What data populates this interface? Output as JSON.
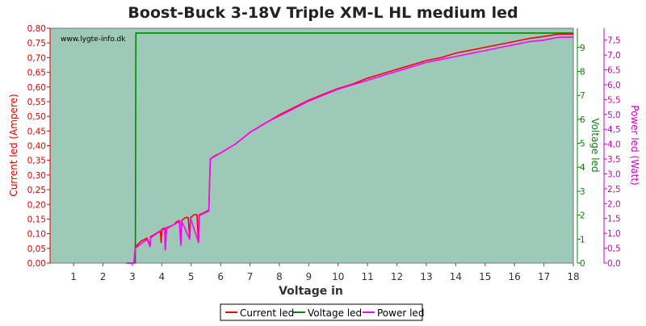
{
  "chart_data": {
    "type": "line",
    "title": "Boost-Buck 3-18V Triple XM-L HL medium led",
    "xlabel": "Voltage in",
    "xlim": [
      0.2,
      18
    ],
    "x_ticks": [
      1,
      2,
      3,
      4,
      5,
      6,
      7,
      8,
      9,
      10,
      11,
      12,
      13,
      14,
      15,
      16,
      17,
      18
    ],
    "watermark": "www.lygte-info.dk",
    "grid": false,
    "legend_position": "bottom-center",
    "axes": {
      "left": {
        "label": "Current led (Ampere)",
        "color": "#dd0000",
        "ylim": [
          0,
          0.8
        ],
        "ticks": [
          "0,00",
          "0,05",
          "0,10",
          "0,15",
          "0,20",
          "0,25",
          "0,30",
          "0,35",
          "0,40",
          "0,45",
          "0,50",
          "0,55",
          "0,60",
          "0,65",
          "0,70",
          "0,75",
          "0,80"
        ]
      },
      "right1": {
        "label": "Voltage led",
        "color": "#008800",
        "ylim": [
          0,
          9.8
        ],
        "ticks": [
          "0",
          "1",
          "2",
          "3",
          "4",
          "5",
          "6",
          "7",
          "8",
          "9"
        ]
      },
      "right2": {
        "label": "Power led (Watt)",
        "color": "#cc00cc",
        "ylim": [
          0,
          7.9
        ],
        "ticks": [
          "0,0",
          "0,5",
          "1,0",
          "1,5",
          "2,0",
          "2,5",
          "3,0",
          "3,5",
          "4,0",
          "4,5",
          "5,0",
          "5,5",
          "6,0",
          "6,5",
          "7,0",
          "7,5"
        ]
      }
    },
    "series": [
      {
        "name": "Current led",
        "axis": "left",
        "color": "#ff0000",
        "points": [
          [
            2.8,
            0.0
          ],
          [
            3.05,
            0.0
          ],
          [
            3.1,
            0.055
          ],
          [
            3.3,
            0.075
          ],
          [
            3.5,
            0.085
          ],
          [
            3.6,
            0.06
          ],
          [
            3.62,
            0.09
          ],
          [
            3.8,
            0.1
          ],
          [
            3.95,
            0.11
          ],
          [
            3.98,
            0.07
          ],
          [
            4.0,
            0.115
          ],
          [
            4.1,
            0.12
          ],
          [
            4.12,
            0.045
          ],
          [
            4.16,
            0.12
          ],
          [
            4.4,
            0.13
          ],
          [
            4.5,
            0.14
          ],
          [
            4.6,
            0.145
          ],
          [
            4.65,
            0.065
          ],
          [
            4.68,
            0.145
          ],
          [
            4.8,
            0.155
          ],
          [
            4.9,
            0.155
          ],
          [
            4.95,
            0.085
          ],
          [
            4.98,
            0.155
          ],
          [
            5.1,
            0.165
          ],
          [
            5.2,
            0.165
          ],
          [
            5.25,
            0.07
          ],
          [
            5.28,
            0.165
          ],
          [
            5.4,
            0.17
          ],
          [
            5.6,
            0.18
          ],
          [
            5.65,
            0.355
          ],
          [
            5.8,
            0.365
          ],
          [
            6.0,
            0.375
          ],
          [
            6.5,
            0.405
          ],
          [
            7.0,
            0.445
          ],
          [
            7.5,
            0.475
          ],
          [
            8.0,
            0.505
          ],
          [
            8.5,
            0.53
          ],
          [
            9.0,
            0.555
          ],
          [
            9.5,
            0.575
          ],
          [
            10.0,
            0.595
          ],
          [
            10.5,
            0.61
          ],
          [
            11.0,
            0.63
          ],
          [
            11.5,
            0.645
          ],
          [
            12.0,
            0.66
          ],
          [
            12.5,
            0.675
          ],
          [
            13.0,
            0.69
          ],
          [
            13.5,
            0.7
          ],
          [
            14.0,
            0.715
          ],
          [
            14.5,
            0.725
          ],
          [
            15.0,
            0.735
          ],
          [
            15.5,
            0.745
          ],
          [
            16.0,
            0.755
          ],
          [
            16.5,
            0.765
          ],
          [
            17.0,
            0.772
          ],
          [
            17.5,
            0.78
          ],
          [
            18.0,
            0.78
          ]
        ]
      },
      {
        "name": "Voltage led",
        "axis": "right1",
        "color": "#008800",
        "points": [
          [
            2.8,
            0.0
          ],
          [
            3.1,
            0.0
          ],
          [
            3.12,
            9.6
          ],
          [
            18.0,
            9.6
          ]
        ]
      },
      {
        "name": "Power led",
        "axis": "right2",
        "color": "#ff00ff",
        "points": [
          [
            2.8,
            0.0
          ],
          [
            3.05,
            0.0
          ],
          [
            3.1,
            0.5
          ],
          [
            3.5,
            0.8
          ],
          [
            3.6,
            0.55
          ],
          [
            3.62,
            0.85
          ],
          [
            4.0,
            1.1
          ],
          [
            4.1,
            1.15
          ],
          [
            4.12,
            0.45
          ],
          [
            4.16,
            1.15
          ],
          [
            4.6,
            1.4
          ],
          [
            4.65,
            0.6
          ],
          [
            4.68,
            1.4
          ],
          [
            4.95,
            0.8
          ],
          [
            4.98,
            1.5
          ],
          [
            5.25,
            0.7
          ],
          [
            5.28,
            1.6
          ],
          [
            5.6,
            1.75
          ],
          [
            5.65,
            3.5
          ],
          [
            6.0,
            3.7
          ],
          [
            6.5,
            4.0
          ],
          [
            7.0,
            4.4
          ],
          [
            7.5,
            4.7
          ],
          [
            8.0,
            4.95
          ],
          [
            8.5,
            5.2
          ],
          [
            9.0,
            5.45
          ],
          [
            9.5,
            5.65
          ],
          [
            10.0,
            5.85
          ],
          [
            10.5,
            6.0
          ],
          [
            11.0,
            6.15
          ],
          [
            11.5,
            6.3
          ],
          [
            12.0,
            6.45
          ],
          [
            12.5,
            6.6
          ],
          [
            13.0,
            6.75
          ],
          [
            13.5,
            6.85
          ],
          [
            14.0,
            6.95
          ],
          [
            14.5,
            7.05
          ],
          [
            15.0,
            7.15
          ],
          [
            15.5,
            7.25
          ],
          [
            16.0,
            7.35
          ],
          [
            16.5,
            7.45
          ],
          [
            17.0,
            7.5
          ],
          [
            17.5,
            7.6
          ],
          [
            18.0,
            7.6
          ]
        ]
      }
    ]
  }
}
